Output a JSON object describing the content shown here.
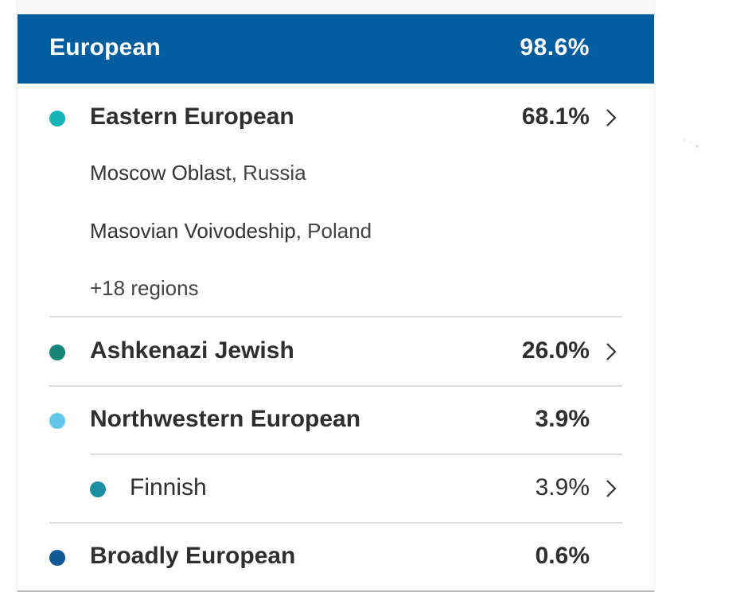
{
  "header": {
    "title": "European",
    "percentage": "98.6%"
  },
  "rows": [
    {
      "label": "Eastern European",
      "percentage": "68.1%",
      "dot_color": "#16b3b9",
      "has_chevron": true,
      "regions": [
        {
          "place": "Moscow Oblast",
          "country": ", Russia"
        },
        {
          "place": "Masovian Voivodeship",
          "country": ", Poland"
        }
      ],
      "more_regions": "+18 regions"
    },
    {
      "label": "Ashkenazi Jewish",
      "percentage": "26.0%",
      "dot_color": "#168679",
      "has_chevron": true
    },
    {
      "label": "Northwestern European",
      "percentage": "3.9%",
      "dot_color": "#5ec7ea",
      "has_chevron": false
    },
    {
      "label": "Finnish",
      "percentage": "3.9%",
      "dot_color": "#1a8fa4",
      "has_chevron": true,
      "indented": true
    },
    {
      "label": "Broadly European",
      "percentage": "0.6%",
      "dot_color": "#0c5a96",
      "has_chevron": false
    }
  ],
  "colors": {
    "header_bg": "#045d9e",
    "text": "#2f2f2f",
    "divider": "#dddddd"
  },
  "icons": {
    "chevron": "chevron-right-icon",
    "dot": "population-color-dot"
  }
}
